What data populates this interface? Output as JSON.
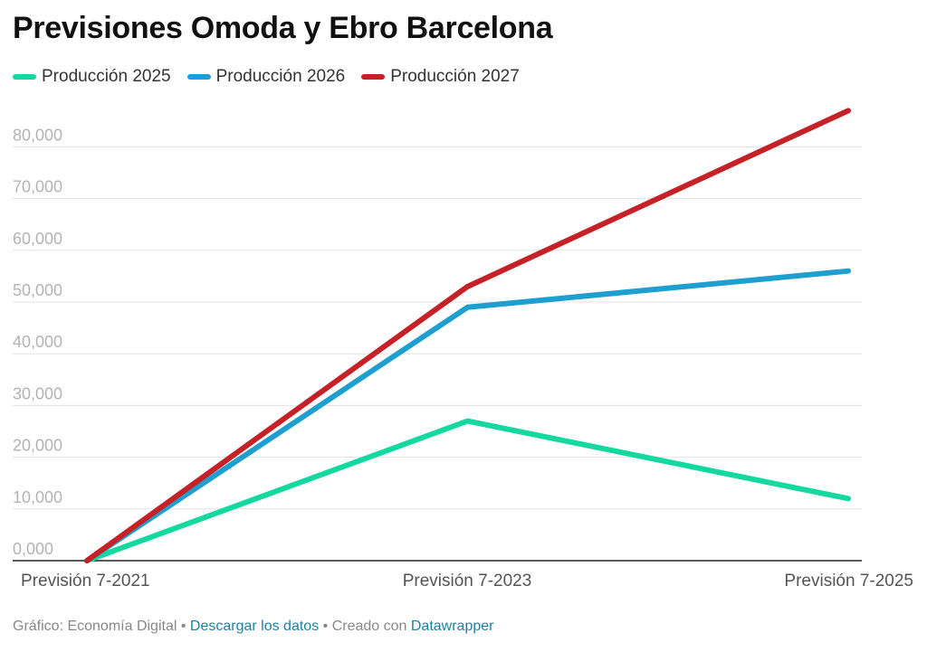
{
  "chart_data": {
    "type": "line",
    "title": "Previsiones Omoda y Ebro Barcelona",
    "x": [
      "Previsión 7-2021",
      "Previsión 7-2023",
      "Previsión 7-2025"
    ],
    "series": [
      {
        "name": "Producción 2025",
        "color": "#13d8a0",
        "values": [
          0,
          27000,
          12000
        ]
      },
      {
        "name": "Producción 2026",
        "color": "#1e9fd0",
        "values": [
          0,
          49000,
          56000
        ]
      },
      {
        "name": "Producción 2027",
        "color": "#c52126",
        "values": [
          0,
          53000,
          87000
        ]
      }
    ],
    "yticks": [
      "0,000",
      "10,000",
      "20,000",
      "30,000",
      "40,000",
      "50,000",
      "60,000",
      "70,000",
      "80,000"
    ],
    "ylim": [
      0,
      80000
    ],
    "grid": true,
    "legend": "top-left"
  },
  "footer": {
    "source": "Gráfico: Economía Digital",
    "sep1": " • ",
    "download": "Descargar los datos",
    "sep2": " • ",
    "created": "Creado con ",
    "tool": "Datawrapper"
  }
}
